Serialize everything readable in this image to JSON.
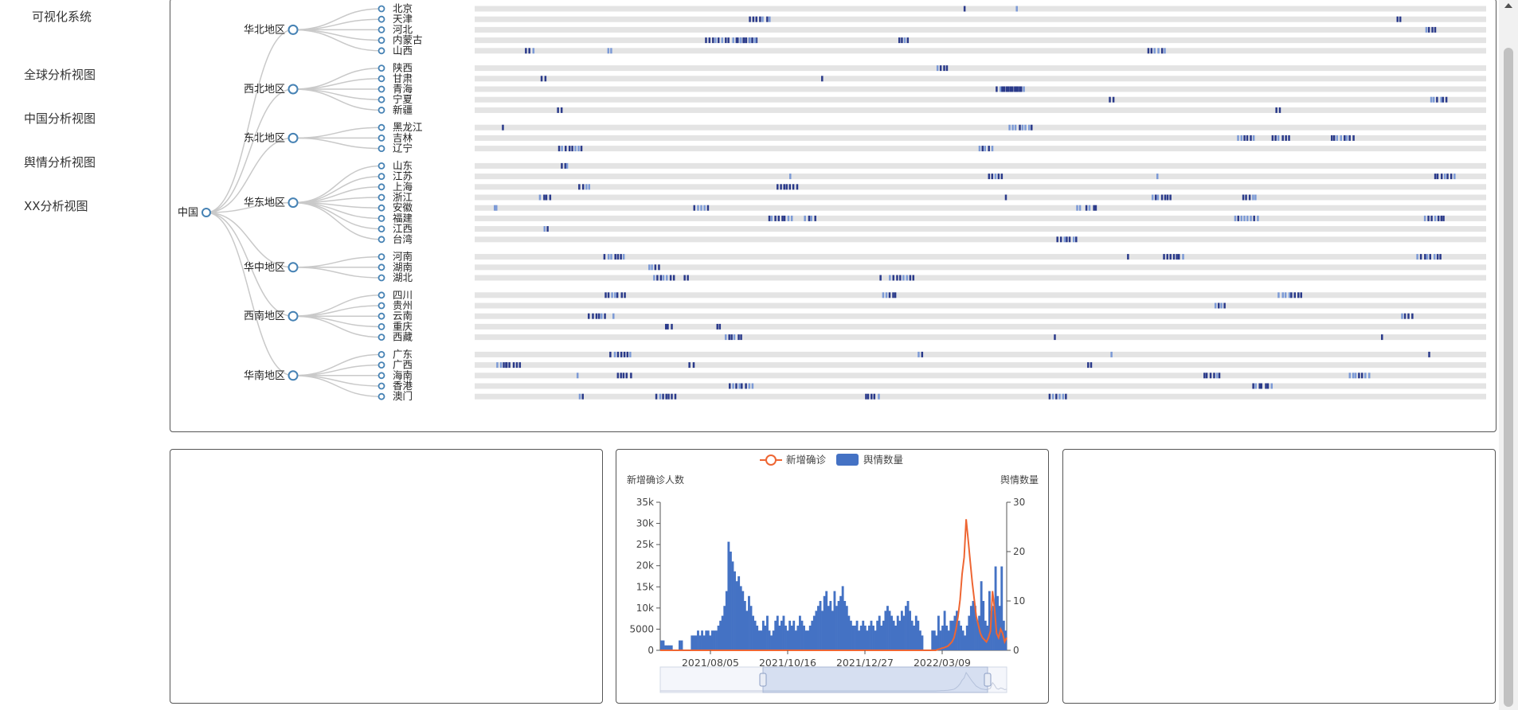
{
  "sidebar": {
    "title": "可视化系统",
    "items": [
      {
        "label": "全球分析视图"
      },
      {
        "label": "中国分析视图"
      },
      {
        "label": "舆情分析视图"
      },
      {
        "label": "XX分析视图"
      }
    ]
  },
  "tree": {
    "root": "中国",
    "regions": [
      {
        "name": "华北地区",
        "provinces": [
          "北京",
          "天津",
          "河北",
          "内蒙古",
          "山西"
        ]
      },
      {
        "name": "西北地区",
        "provinces": [
          "陕西",
          "甘肃",
          "青海",
          "宁夏",
          "新疆"
        ]
      },
      {
        "name": "东北地区",
        "provinces": [
          "黑龙江",
          "吉林",
          "辽宁"
        ]
      },
      {
        "name": "华东地区",
        "provinces": [
          "山东",
          "江苏",
          "上海",
          "浙江",
          "安徽",
          "福建",
          "江西",
          "台湾"
        ]
      },
      {
        "name": "华中地区",
        "provinces": [
          "河南",
          "湖南",
          "湖北"
        ]
      },
      {
        "name": "西南地区",
        "provinces": [
          "四川",
          "贵州",
          "云南",
          "重庆",
          "西藏"
        ]
      },
      {
        "name": "华南地区",
        "provinces": [
          "广东",
          "广西",
          "海南",
          "香港",
          "澳门"
        ]
      }
    ]
  },
  "chart": {
    "legend": [
      "新增确诊",
      "舆情数量"
    ],
    "y_left_label": "新增确诊人数",
    "y_right_label": "舆情数量",
    "colors": {
      "line": "#ee6633",
      "bar": "#4472c4"
    }
  },
  "chart_data": {
    "type": "bar",
    "x_ticks": [
      "2021/08/05",
      "2021/10/16",
      "2021/12/27",
      "2022/03/09"
    ],
    "y_left_ticks": [
      "0",
      "5000",
      "10k",
      "15k",
      "20k",
      "25k",
      "30k",
      "35k"
    ],
    "y_left_range": [
      0,
      35000
    ],
    "y_right_ticks": [
      "0",
      "10",
      "20",
      "30"
    ],
    "y_right_range": [
      0,
      30
    ],
    "series": [
      {
        "name": "舆情数量",
        "type": "bar",
        "axis": "right",
        "values": [
          2,
          2,
          1,
          1,
          1,
          1,
          0,
          0,
          0,
          2,
          2,
          0,
          0,
          0,
          0,
          3,
          3,
          3,
          4,
          3,
          4,
          3,
          4,
          4,
          3,
          4,
          4,
          4,
          5,
          6,
          7,
          9,
          12,
          22,
          20,
          18,
          16,
          14,
          15,
          13,
          12,
          10,
          8,
          11,
          9,
          7,
          6,
          5,
          4,
          4,
          6,
          5,
          7,
          4,
          3,
          4,
          6,
          7,
          5,
          6,
          7,
          5,
          4,
          6,
          5,
          6,
          4,
          5,
          7,
          6,
          5,
          4,
          4,
          5,
          6,
          7,
          8,
          9,
          10,
          8,
          11,
          12,
          9,
          10,
          8,
          12,
          9,
          10,
          11,
          13,
          10,
          9,
          7,
          6,
          5,
          5,
          6,
          4,
          5,
          6,
          5,
          4,
          5,
          6,
          5,
          4,
          6,
          7,
          5,
          6,
          8,
          9,
          8,
          7,
          6,
          5,
          7,
          6,
          8,
          7,
          9,
          10,
          8,
          6,
          5,
          7,
          6,
          4,
          3,
          0,
          0,
          0,
          0,
          4,
          4,
          3,
          7,
          4,
          5,
          8,
          5,
          4,
          6,
          6,
          7,
          8,
          6,
          5,
          4,
          3,
          5,
          7,
          9,
          10,
          9,
          6,
          7,
          14,
          10,
          6,
          5,
          12,
          8,
          9,
          17,
          11,
          9,
          17,
          6,
          4
        ]
      },
      {
        "name": "新增确诊",
        "type": "line",
        "axis": "left",
        "values": [
          0,
          0,
          0,
          0,
          0,
          0,
          0,
          0,
          0,
          0,
          0,
          0,
          0,
          0,
          0,
          0,
          0,
          0,
          0,
          0,
          0,
          0,
          0,
          0,
          0,
          0,
          0,
          0,
          0,
          0,
          0,
          0,
          0,
          0,
          0,
          0,
          0,
          0,
          0,
          0,
          0,
          0,
          0,
          0,
          0,
          0,
          0,
          0,
          0,
          0,
          0,
          0,
          0,
          0,
          0,
          0,
          0,
          0,
          0,
          0,
          0,
          0,
          0,
          0,
          0,
          0,
          0,
          0,
          0,
          0,
          0,
          0,
          0,
          0,
          0,
          0,
          0,
          0,
          0,
          0,
          0,
          0,
          0,
          0,
          0,
          0,
          0,
          0,
          0,
          0,
          0,
          0,
          0,
          0,
          0,
          0,
          0,
          0,
          0,
          0,
          0,
          0,
          0,
          0,
          0,
          0,
          0,
          0,
          0,
          0,
          0,
          0,
          0,
          0,
          0,
          0,
          0,
          0,
          0,
          0,
          0,
          0,
          0,
          0,
          0,
          0,
          0,
          0,
          0,
          0,
          0,
          0,
          0,
          0,
          0,
          0,
          0,
          200,
          300,
          500,
          600,
          800,
          1000,
          1500,
          2000,
          3000,
          5000,
          8000,
          12000,
          18000,
          22000,
          31000,
          26000,
          21000,
          16000,
          12000,
          8000,
          6000,
          4000,
          3000,
          2500,
          2000,
          3000,
          4500,
          14000,
          10000,
          4000,
          3000,
          5000,
          4000,
          2000,
          3000
        ]
      }
    ]
  }
}
